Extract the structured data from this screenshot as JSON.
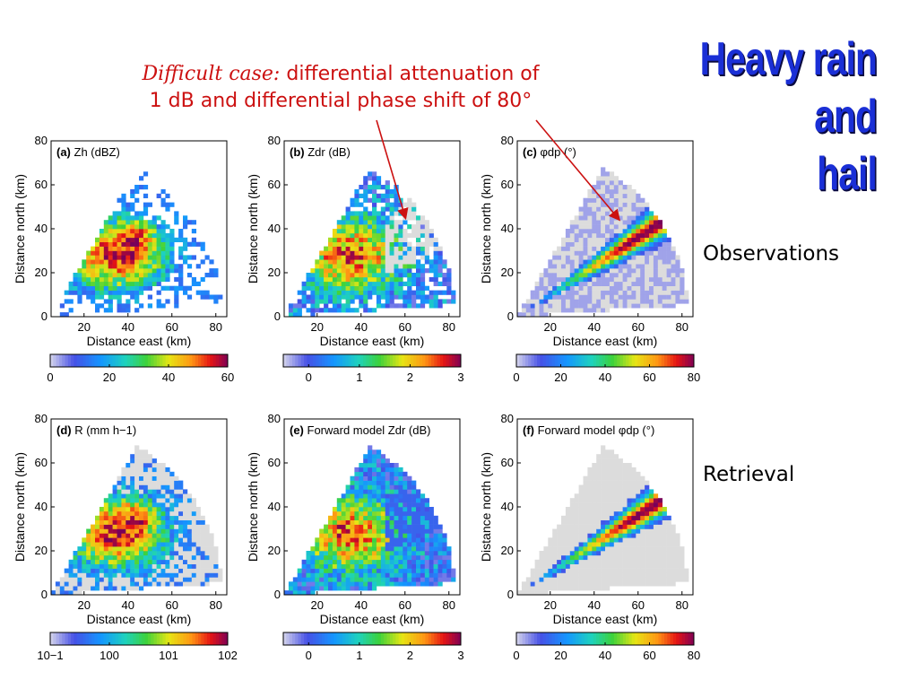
{
  "annotation": {
    "lead": "Difficult case:",
    "line1_rest": " differential attenuation of",
    "line2": "1 dB and differential phase shift of 80°"
  },
  "heading": {
    "line1": "Heavy rain",
    "line2": "and",
    "line3": "hail"
  },
  "row_labels": {
    "top": "Observations",
    "bottom": "Retrieval"
  },
  "colors": {
    "annotation_red": "#cc1111",
    "heading_blue": "#1a2fd6",
    "no_data_gray": "#dcdcdc"
  },
  "chart_data": [
    {
      "type": "heatmap",
      "panel": "(a)",
      "title": "Zh (dBZ)",
      "xlabel": "Distance east (km)",
      "ylabel": "Distance north (km)",
      "xlim": [
        5,
        85
      ],
      "ylim": [
        0,
        80
      ],
      "xticks": [
        20,
        40,
        60,
        80
      ],
      "yticks": [
        0,
        20,
        40,
        60,
        80
      ],
      "colorbar": {
        "ticks": [
          "0",
          "20",
          "40",
          "60"
        ],
        "range": [
          0,
          60
        ],
        "scale": "linear"
      }
    },
    {
      "type": "heatmap",
      "panel": "(b)",
      "title": "Zdr (dB)",
      "xlabel": "Distance east (km)",
      "ylabel": "Distance north (km)",
      "xlim": [
        5,
        85
      ],
      "ylim": [
        0,
        80
      ],
      "xticks": [
        20,
        40,
        60,
        80
      ],
      "yticks": [
        0,
        20,
        40,
        60,
        80
      ],
      "colorbar": {
        "ticks": [
          "0",
          "1",
          "2",
          "3"
        ],
        "range": [
          -0.5,
          3
        ],
        "scale": "linear"
      }
    },
    {
      "type": "heatmap",
      "panel": "(c)",
      "title": "φdp (°)",
      "xlabel": "Distance east (km)",
      "ylabel": "Distance north (km)",
      "xlim": [
        5,
        85
      ],
      "ylim": [
        0,
        80
      ],
      "xticks": [
        20,
        40,
        60,
        80
      ],
      "yticks": [
        0,
        20,
        40,
        60,
        80
      ],
      "colorbar": {
        "ticks": [
          "0",
          "20",
          "40",
          "60",
          "80"
        ],
        "range": [
          0,
          80
        ],
        "scale": "linear"
      }
    },
    {
      "type": "heatmap",
      "panel": "(d)",
      "title": "R (mm h−1)",
      "xlabel": "Distance east (km)",
      "ylabel": "Distance north (km)",
      "xlim": [
        5,
        85
      ],
      "ylim": [
        0,
        80
      ],
      "xticks": [
        20,
        40,
        60,
        80
      ],
      "yticks": [
        0,
        20,
        40,
        60,
        80
      ],
      "colorbar": {
        "ticks": [
          "10−1",
          "100",
          "101",
          "102"
        ],
        "range": [
          0.1,
          100
        ],
        "scale": "log"
      }
    },
    {
      "type": "heatmap",
      "panel": "(e)",
      "title": "Forward model Zdr (dB)",
      "xlabel": "Distance east (km)",
      "ylabel": "Distance north (km)",
      "xlim": [
        5,
        85
      ],
      "ylim": [
        0,
        80
      ],
      "xticks": [
        20,
        40,
        60,
        80
      ],
      "yticks": [
        0,
        20,
        40,
        60,
        80
      ],
      "colorbar": {
        "ticks": [
          "0",
          "1",
          "2",
          "3"
        ],
        "range": [
          -0.5,
          3
        ],
        "scale": "linear"
      }
    },
    {
      "type": "heatmap",
      "panel": "(f)",
      "title": "Forward model φdp (°)",
      "xlabel": "Distance east (km)",
      "ylabel": "Distance north (km)",
      "xlim": [
        5,
        85
      ],
      "ylim": [
        0,
        80
      ],
      "xticks": [
        20,
        40,
        60,
        80
      ],
      "yticks": [
        0,
        20,
        40,
        60,
        80
      ],
      "colorbar": {
        "ticks": [
          "0",
          "20",
          "40",
          "60",
          "80"
        ],
        "range": [
          0,
          80
        ],
        "scale": "linear"
      }
    }
  ]
}
